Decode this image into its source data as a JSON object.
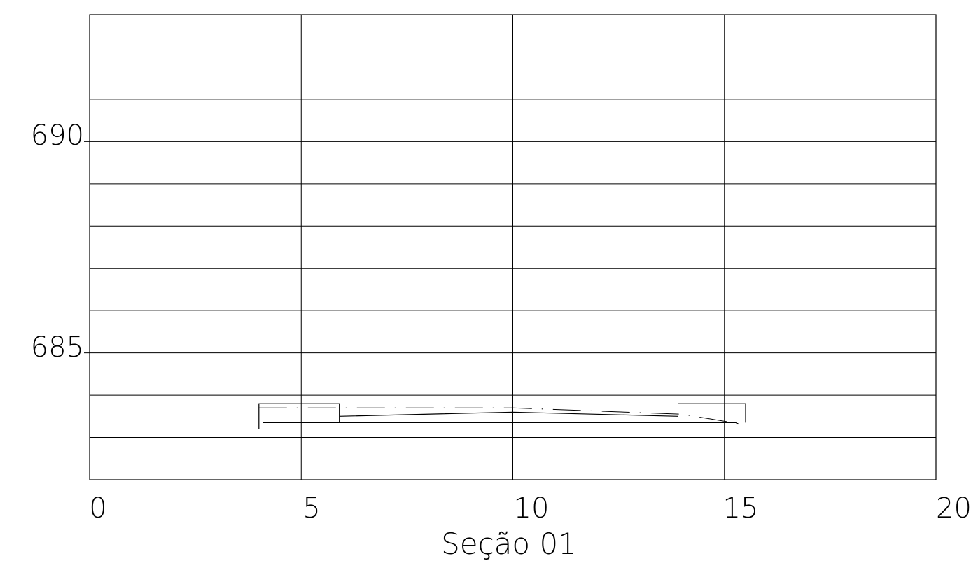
{
  "chart_data": {
    "type": "line",
    "title": "Seção 01",
    "xlim": [
      0,
      20
    ],
    "ylim": [
      682,
      693
    ],
    "x_ticks": [
      "0",
      "5",
      "10",
      "15",
      "20"
    ],
    "y_ticks": [
      "685",
      "690"
    ],
    "y_tick_values": [
      685,
      690
    ],
    "grid": true,
    "grid_step_x": 5,
    "grid_step_y": 1,
    "line_color": "#000000",
    "terrain": [
      [
        4.0,
        683.7
      ],
      [
        6.0,
        683.7
      ],
      [
        10.0,
        683.7
      ],
      [
        14.0,
        683.55
      ],
      [
        15.5,
        683.3
      ]
    ],
    "road_surface": [
      [
        5.9,
        683.5
      ],
      [
        10.0,
        683.6
      ],
      [
        13.9,
        683.5
      ]
    ],
    "road_base": [
      [
        4.1,
        683.35
      ],
      [
        15.3,
        683.35
      ]
    ],
    "curb_left": [
      [
        4.0,
        683.2
      ],
      [
        4.0,
        683.8
      ],
      [
        5.9,
        683.8
      ],
      [
        5.9,
        683.35
      ]
    ],
    "curb_right": [
      [
        13.9,
        683.8
      ],
      [
        15.5,
        683.8
      ],
      [
        15.5,
        683.35
      ]
    ]
  }
}
